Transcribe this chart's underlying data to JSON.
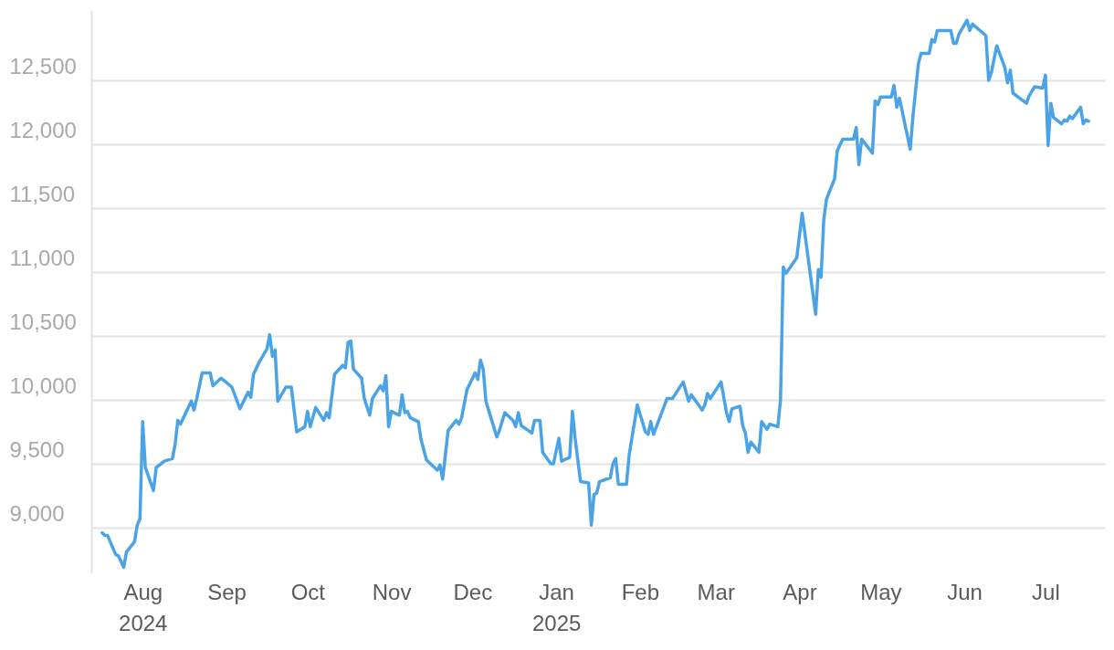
{
  "chart_data": {
    "type": "line",
    "xlim": [
      "2024-07-13",
      "2025-07-23"
    ],
    "yticks": [
      {
        "value": 9000,
        "label": "9,000"
      },
      {
        "value": 9500,
        "label": "9,500"
      },
      {
        "value": 10000,
        "label": "10,000"
      },
      {
        "value": 10500,
        "label": "10,500"
      },
      {
        "value": 11000,
        "label": "11,000"
      },
      {
        "value": 11500,
        "label": "11,500"
      },
      {
        "value": 12000,
        "label": "12,000"
      },
      {
        "value": 12500,
        "label": "12,500"
      }
    ],
    "xticks": [
      {
        "value": "2024-08-01",
        "label": "Aug\n2024"
      },
      {
        "value": "2024-09-01",
        "label": "Sep"
      },
      {
        "value": "2024-10-01",
        "label": "Oct"
      },
      {
        "value": "2024-11-01",
        "label": "Nov"
      },
      {
        "value": "2024-12-01",
        "label": "Dec"
      },
      {
        "value": "2025-01-01",
        "label": "Jan\n2025"
      },
      {
        "value": "2025-02-01",
        "label": "Feb"
      },
      {
        "value": "2025-03-01",
        "label": "Mar"
      },
      {
        "value": "2025-04-01",
        "label": "Apr"
      },
      {
        "value": "2025-05-01",
        "label": "May"
      },
      {
        "value": "2025-06-01",
        "label": "Jun"
      },
      {
        "value": "2025-07-01",
        "label": "Jul"
      }
    ],
    "ylim": [
      8650,
      13050
    ],
    "grid": "y",
    "marker": "none",
    "line_style": "solid",
    "x": [
      "2024-07-17",
      "2024-07-18",
      "2024-07-19",
      "2024-07-22",
      "2024-07-23",
      "2024-07-25",
      "2024-07-26",
      "2024-07-29",
      "2024-07-30",
      "2024-07-31",
      "2024-08-01",
      "2024-08-02",
      "2024-08-05",
      "2024-08-06",
      "2024-08-09",
      "2024-08-12",
      "2024-08-13",
      "2024-08-14",
      "2024-08-15",
      "2024-08-19",
      "2024-08-20",
      "2024-08-21",
      "2024-08-23",
      "2024-08-26",
      "2024-08-27",
      "2024-08-30",
      "2024-09-03",
      "2024-09-06",
      "2024-09-09",
      "2024-09-10",
      "2024-09-11",
      "2024-09-13",
      "2024-09-16",
      "2024-09-17",
      "2024-09-18",
      "2024-09-19",
      "2024-09-20",
      "2024-09-23",
      "2024-09-25",
      "2024-09-27",
      "2024-09-30",
      "2024-10-01",
      "2024-10-02",
      "2024-10-04",
      "2024-10-07",
      "2024-10-08",
      "2024-10-09",
      "2024-10-11",
      "2024-10-14",
      "2024-10-15",
      "2024-10-16",
      "2024-10-17",
      "2024-10-18",
      "2024-10-21",
      "2024-10-22",
      "2024-10-24",
      "2024-10-25",
      "2024-10-28",
      "2024-10-29",
      "2024-10-30",
      "2024-10-31",
      "2024-11-01",
      "2024-11-04",
      "2024-11-05",
      "2024-11-06",
      "2024-11-07",
      "2024-11-08",
      "2024-11-11",
      "2024-11-12",
      "2024-11-14",
      "2024-11-18",
      "2024-11-19",
      "2024-11-20",
      "2024-11-22",
      "2024-11-25",
      "2024-11-26",
      "2024-11-27",
      "2024-11-29",
      "2024-12-02",
      "2024-12-03",
      "2024-12-04",
      "2024-12-05",
      "2024-12-06",
      "2024-12-10",
      "2024-12-11",
      "2024-12-13",
      "2024-12-16",
      "2024-12-17",
      "2024-12-18",
      "2024-12-19",
      "2024-12-23",
      "2024-12-24",
      "2024-12-26",
      "2024-12-27",
      "2024-12-30",
      "2024-12-31",
      "2025-01-02",
      "2025-01-03",
      "2025-01-06",
      "2025-01-07",
      "2025-01-08",
      "2025-01-10",
      "2025-01-13",
      "2025-01-14",
      "2025-01-15",
      "2025-01-16",
      "2025-01-17",
      "2025-01-21",
      "2025-01-22",
      "2025-01-23",
      "2025-01-24",
      "2025-01-27",
      "2025-01-28",
      "2025-01-31",
      "2025-02-03",
      "2025-02-04",
      "2025-02-05",
      "2025-02-06",
      "2025-02-11",
      "2025-02-13",
      "2025-02-17",
      "2025-02-19",
      "2025-02-20",
      "2025-02-24",
      "2025-02-25",
      "2025-02-26",
      "2025-02-27",
      "2025-03-03",
      "2025-03-05",
      "2025-03-06",
      "2025-03-07",
      "2025-03-10",
      "2025-03-11",
      "2025-03-12",
      "2025-03-13",
      "2025-03-14",
      "2025-03-17",
      "2025-03-18",
      "2025-03-20",
      "2025-03-21",
      "2025-03-24",
      "2025-03-25",
      "2025-03-26",
      "2025-03-27",
      "2025-03-31",
      "2025-04-02",
      "2025-04-07",
      "2025-04-08",
      "2025-04-09",
      "2025-04-10",
      "2025-04-11",
      "2025-04-14",
      "2025-04-15",
      "2025-04-17",
      "2025-04-21",
      "2025-04-22",
      "2025-04-23",
      "2025-04-24",
      "2025-04-28",
      "2025-04-29",
      "2025-04-30",
      "2025-05-01",
      "2025-05-05",
      "2025-05-06",
      "2025-05-07",
      "2025-05-08",
      "2025-05-12",
      "2025-05-13",
      "2025-05-15",
      "2025-05-16",
      "2025-05-19",
      "2025-05-20",
      "2025-05-21",
      "2025-05-22",
      "2025-05-27",
      "2025-05-28",
      "2025-05-29",
      "2025-05-30",
      "2025-06-02",
      "2025-06-03",
      "2025-06-04",
      "2025-06-09",
      "2025-06-10",
      "2025-06-11",
      "2025-06-13",
      "2025-06-16",
      "2025-06-17",
      "2025-06-18",
      "2025-06-19",
      "2025-06-24",
      "2025-06-25",
      "2025-06-27",
      "2025-06-30",
      "2025-07-01",
      "2025-07-02",
      "2025-07-03",
      "2025-07-04",
      "2025-07-07",
      "2025-07-08",
      "2025-07-09",
      "2025-07-10",
      "2025-07-11",
      "2025-07-14",
      "2025-07-15",
      "2025-07-16",
      "2025-07-17"
    ],
    "series": [
      {
        "color": "#4aa3e6",
        "values": [
          8960,
          8940,
          8940,
          8790,
          8780,
          8690,
          8810,
          8890,
          9020,
          9070,
          9830,
          9470,
          9290,
          9470,
          9520,
          9540,
          9650,
          9840,
          9810,
          9990,
          9920,
          10010,
          10210,
          10210,
          10110,
          10170,
          10100,
          9930,
          10060,
          10020,
          10200,
          10290,
          10400,
          10510,
          10340,
          10390,
          9990,
          10100,
          10100,
          9750,
          9790,
          9910,
          9790,
          9940,
          9840,
          9900,
          9860,
          10200,
          10270,
          10250,
          10450,
          10460,
          10240,
          10170,
          10010,
          9880,
          10010,
          10110,
          10070,
          10190,
          9790,
          9910,
          9880,
          10040,
          9900,
          9910,
          9860,
          9830,
          9690,
          9530,
          9450,
          9490,
          9380,
          9760,
          9840,
          9810,
          9860,
          10080,
          10210,
          10160,
          10310,
          10240,
          9990,
          9710,
          9760,
          9900,
          9840,
          9790,
          9900,
          9800,
          9740,
          9840,
          9840,
          9590,
          9500,
          9500,
          9700,
          9520,
          9550,
          9910,
          9700,
          9360,
          9350,
          9020,
          9260,
          9270,
          9360,
          9390,
          9500,
          9540,
          9340,
          9340,
          9570,
          9960,
          9750,
          9730,
          9830,
          9730,
          10010,
          10010,
          10140,
          9990,
          10040,
          9920,
          9960,
          10050,
          10010,
          10140,
          9900,
          9830,
          9930,
          9950,
          9800,
          9740,
          9590,
          9670,
          9590,
          9830,
          9770,
          9810,
          9790,
          10000,
          11040,
          10990,
          11110,
          11460,
          10670,
          11020,
          10960,
          11410,
          11570,
          11730,
          11950,
          12040,
          12040,
          12130,
          11840,
          12040,
          11930,
          12340,
          12310,
          12370,
          12370,
          12460,
          12290,
          12360,
          11960,
          12220,
          12630,
          12710,
          12710,
          12820,
          12800,
          12890,
          12890,
          12790,
          12790,
          12860,
          12970,
          12890,
          12940,
          12850,
          12500,
          12560,
          12770,
          12600,
          12480,
          12580,
          12400,
          12320,
          12380,
          12450,
          12440,
          12540,
          11990,
          12320,
          12210,
          12160,
          12190,
          12180,
          12220,
          12200,
          12290,
          12160,
          12190,
          12180
        ]
      }
    ]
  }
}
